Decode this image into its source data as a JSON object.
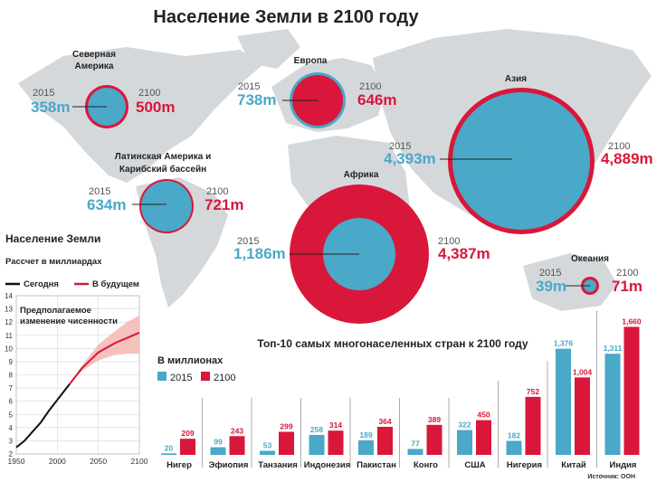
{
  "title": "Население Земли в 2100 году",
  "colors": {
    "y2015": "#4aa8c9",
    "y2100": "#d9173a",
    "map": "#d5d8db",
    "text": "#222222"
  },
  "regions": [
    {
      "name": "Северная Америка",
      "name_lines": [
        "Северная",
        "Америка"
      ],
      "year_a": "2015",
      "year_b": "2100",
      "val_a": "358m",
      "val_b": "500m",
      "pop_2015": 358,
      "pop_2100": 500
    },
    {
      "name": "Европа",
      "name_lines": [
        "Европа"
      ],
      "year_a": "2015",
      "year_b": "2100",
      "val_a": "738m",
      "val_b": "646m",
      "pop_2015": 738,
      "pop_2100": 646
    },
    {
      "name": "Азия",
      "name_lines": [
        "Азия"
      ],
      "year_a": "2015",
      "year_b": "2100",
      "val_a": "4,393m",
      "val_b": "4,889m",
      "pop_2015": 4393,
      "pop_2100": 4889
    },
    {
      "name": "Латинская Америка и Карибский бассейн",
      "name_lines": [
        "Латинская Америка и",
        "Карибский бассейн"
      ],
      "year_a": "2015",
      "year_b": "2100",
      "val_a": "634m",
      "val_b": "721m",
      "pop_2015": 634,
      "pop_2100": 721
    },
    {
      "name": "Африка",
      "name_lines": [
        "Африка"
      ],
      "year_a": "2015",
      "year_b": "2100",
      "val_a": "1,186m",
      "val_b": "4,387m",
      "pop_2015": 1186,
      "pop_2100": 4387
    },
    {
      "name": "Океания",
      "name_lines": [
        "Океания"
      ],
      "year_a": "2015",
      "year_b": "2100",
      "val_a": "39m",
      "val_b": "71m",
      "pop_2015": 39,
      "pop_2100": 71
    }
  ],
  "world_panel": {
    "title": "Население Земли",
    "subtitle": "Рассчет в миллиардах",
    "legend_today": "Сегодня",
    "legend_future": "В будущем",
    "annotation": [
      "Предполагаемое",
      "изменение чисенности"
    ]
  },
  "bar_panel": {
    "title": "Топ-10 самых многонаселенных стран к 2100 году",
    "units": "В миллионах",
    "legend_2015": "2015",
    "legend_2100": "2100",
    "source": "Источник: ООН"
  },
  "chart_data": [
    {
      "type": "bar",
      "title": "Топ-10 самых многонаселенных стран к 2100 году",
      "ylabel": "В миллионах",
      "categories": [
        "Нигер",
        "Эфиопия",
        "Танзания",
        "Индонезия",
        "Пакистан",
        "Конго",
        "США",
        "Нигерия",
        "Китай",
        "Индия"
      ],
      "series": [
        {
          "name": "2015",
          "values": [
            20,
            99,
            53,
            258,
            189,
            77,
            322,
            182,
            1376,
            1311
          ],
          "labels": [
            "20",
            "99",
            "53",
            "258",
            "189",
            "77",
            "322",
            "182",
            "1,376",
            "1,311"
          ]
        },
        {
          "name": "2100",
          "values": [
            209,
            243,
            299,
            314,
            364,
            389,
            450,
            752,
            1004,
            1660
          ],
          "labels": [
            "209",
            "243",
            "299",
            "314",
            "364",
            "389",
            "450",
            "752",
            "1,004",
            "1,660"
          ]
        }
      ]
    },
    {
      "type": "line",
      "title": "Население Земли",
      "subtitle": "Рассчет в миллиардах",
      "xlim": [
        1950,
        2100
      ],
      "ylim": [
        2,
        14
      ],
      "xticks": [
        "1950",
        "2000",
        "2050",
        "2100"
      ],
      "yticks": [
        "2",
        "3",
        "4",
        "5",
        "6",
        "7",
        "8",
        "9",
        "10",
        "11",
        "12",
        "13",
        "14"
      ],
      "grid": true,
      "series": [
        {
          "name": "Сегодня",
          "x": [
            1950,
            1960,
            1970,
            1980,
            1990,
            2000,
            2010,
            2015
          ],
          "y": [
            2.5,
            3.0,
            3.7,
            4.4,
            5.3,
            6.1,
            6.9,
            7.3
          ]
        },
        {
          "name": "В будущем",
          "x": [
            2015,
            2030,
            2050,
            2070,
            2085,
            2100
          ],
          "y": [
            7.3,
            8.5,
            9.7,
            10.4,
            10.8,
            11.2
          ]
        }
      ],
      "band": {
        "x": [
          2015,
          2030,
          2050,
          2070,
          2085,
          2100
        ],
        "low": [
          7.3,
          8.3,
          9.1,
          9.5,
          9.6,
          9.6
        ],
        "high": [
          7.3,
          8.7,
          10.3,
          11.3,
          12.0,
          12.5
        ]
      }
    }
  ]
}
